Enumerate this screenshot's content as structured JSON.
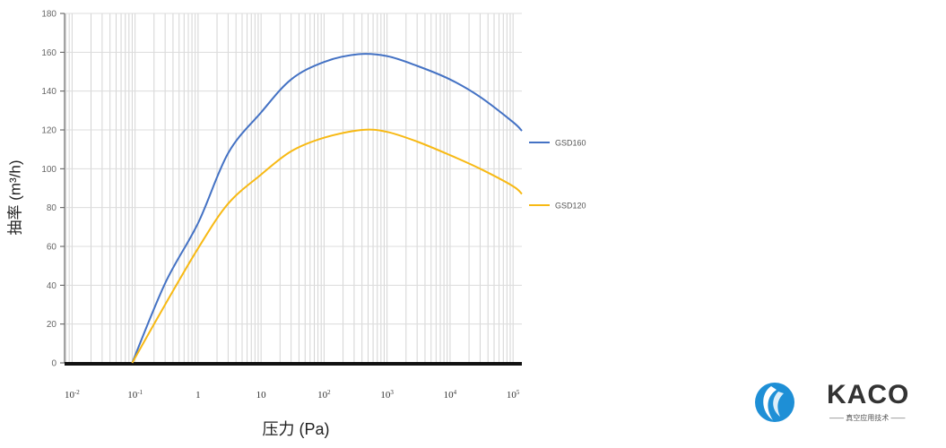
{
  "chart_data": {
    "type": "line",
    "title": "",
    "xlabel": "压力 (Pa)",
    "ylabel": "抽率 (m³/h)",
    "x_scale": "log",
    "xlim": [
      0.0076,
      138000
    ],
    "ylim": [
      0,
      180
    ],
    "x_ticks": [
      0.01,
      0.1,
      1,
      10,
      100,
      1000,
      10000,
      100000
    ],
    "x_tick_labels": [
      "10-2",
      "10-1",
      "1",
      "10",
      "102",
      "103",
      "104",
      "105"
    ],
    "y_ticks": [
      0,
      20,
      40,
      60,
      80,
      100,
      120,
      140,
      160,
      180
    ],
    "grid": true,
    "legend_position": "right",
    "series": [
      {
        "name": "GSD160",
        "color": "#4472c4",
        "x": [
          0.09,
          0.3,
          1,
          3,
          10,
          30,
          100,
          350,
          1000,
          3000,
          10000,
          30000,
          100000,
          138000
        ],
        "y": [
          0,
          41,
          72,
          108,
          129,
          146,
          155,
          159,
          158,
          153,
          146,
          137,
          124,
          119.5
        ]
      },
      {
        "name": "GSD120",
        "color": "#f7b914",
        "x": [
          0.09,
          0.3,
          1,
          3,
          10,
          30,
          100,
          400,
          1000,
          3000,
          10000,
          30000,
          100000,
          138000
        ],
        "y": [
          0,
          30,
          59,
          82,
          97,
          109,
          116,
          120,
          119,
          114,
          107,
          100,
          91,
          87
        ]
      }
    ]
  },
  "logo": {
    "brand": "KACO",
    "tagline": "—— 真空应用技术 ——",
    "color": "#1e8fd6"
  }
}
